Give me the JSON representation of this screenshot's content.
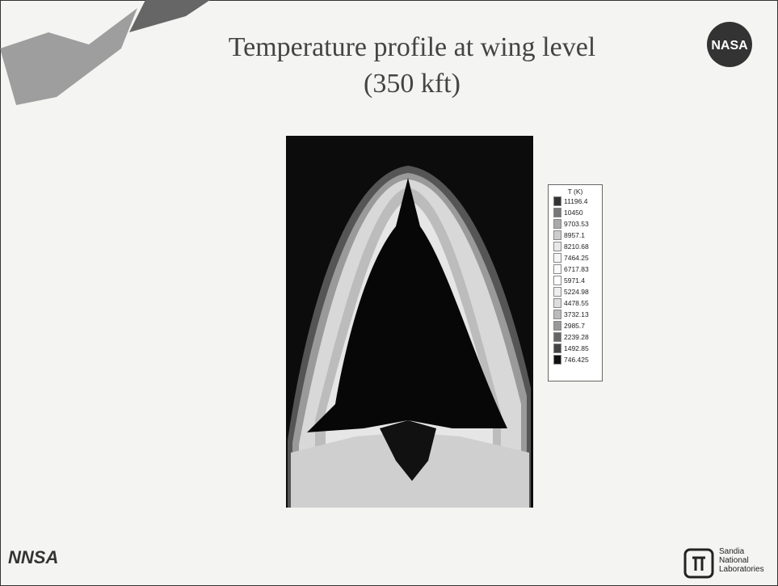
{
  "slide": {
    "title": [
      "Temperature profile at wing level",
      "(350 kft)"
    ],
    "legend": {
      "title": "T (K)",
      "values": [
        "11196.4",
        "10450",
        "9703.53",
        "8957.1",
        "8210.68",
        "7464.25",
        "6717.83",
        "5971.4",
        "5224.98",
        "4478.55",
        "3732.13",
        "2985.7",
        "2239.28",
        "1492.85",
        "746.425"
      ]
    },
    "logos": {
      "nasa": "NASA",
      "nnsa": "NNSA",
      "sandia": [
        "Sandia",
        "National",
        "Laboratories"
      ]
    }
  }
}
